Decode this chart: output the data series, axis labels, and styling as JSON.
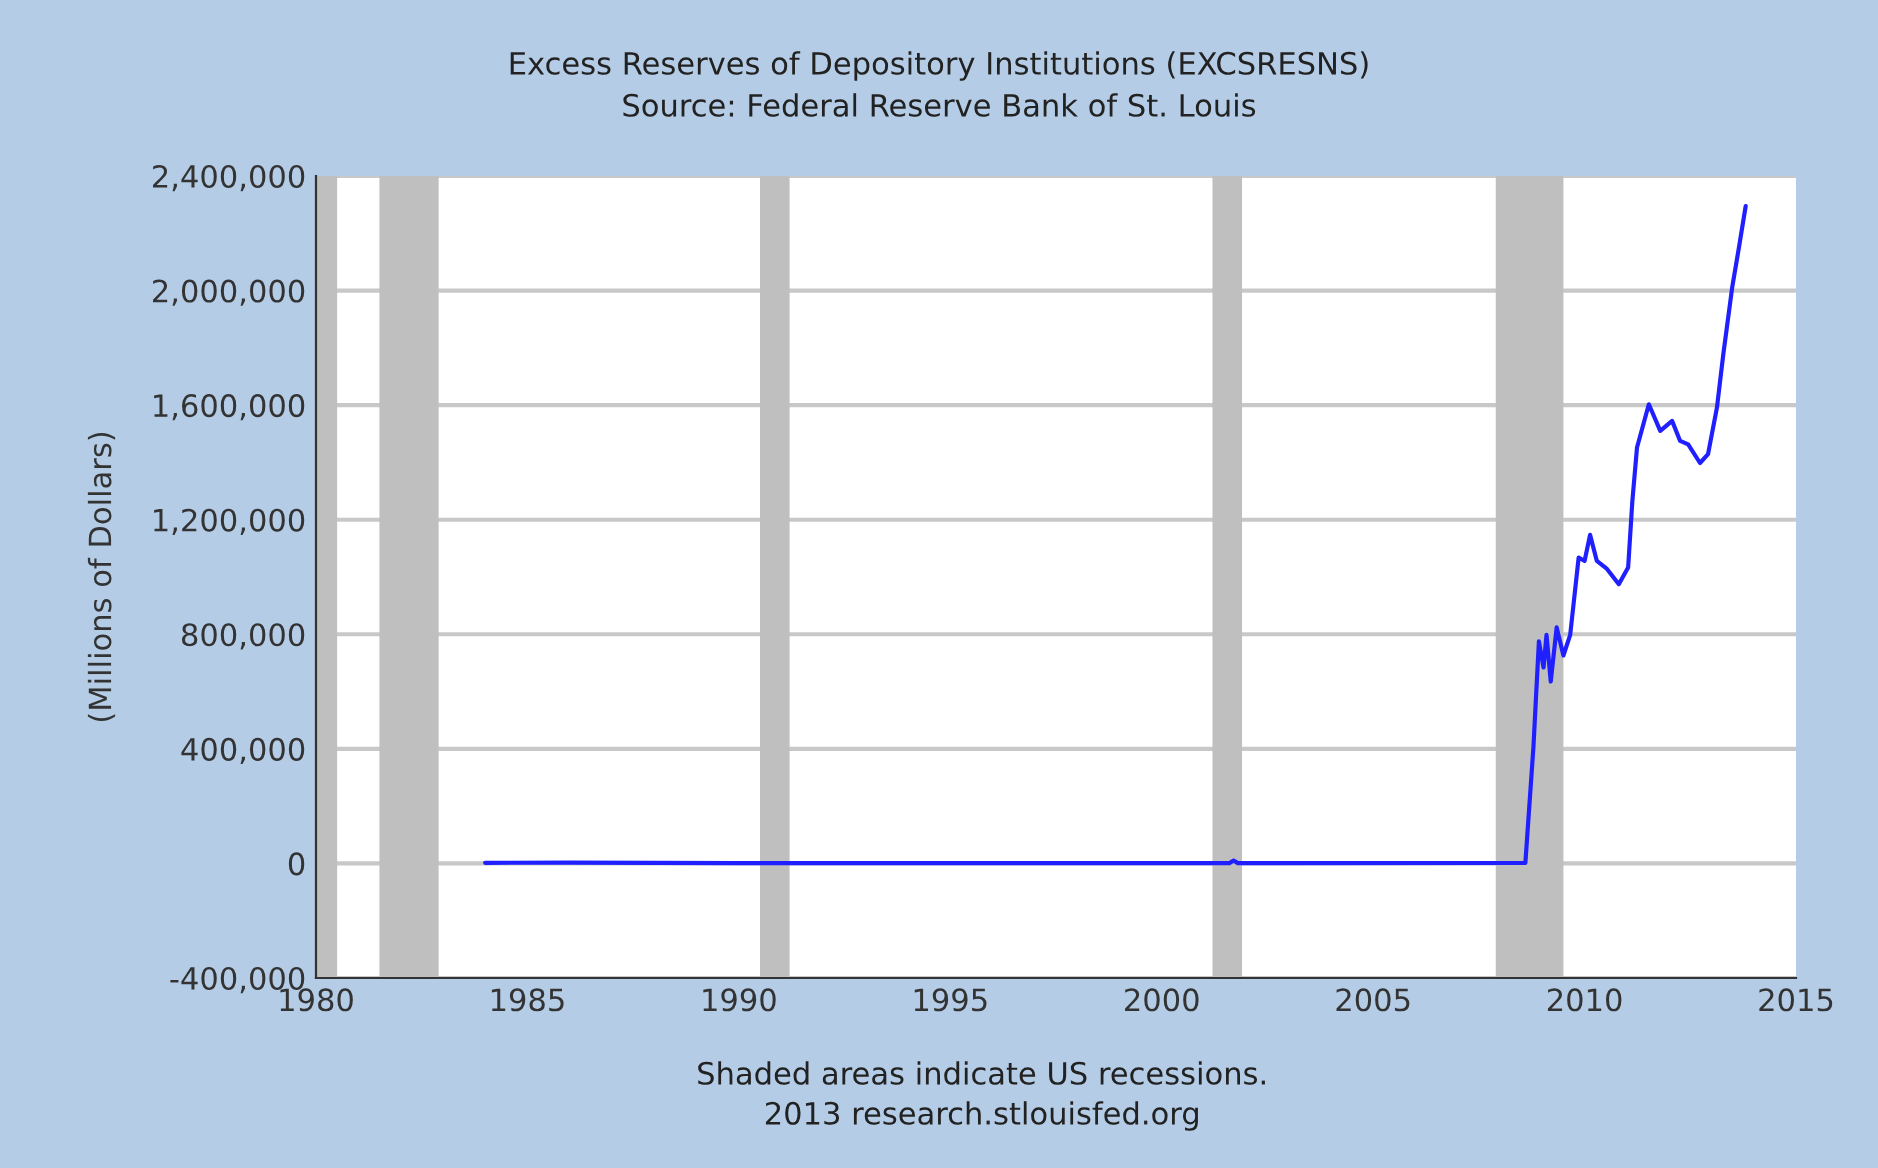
{
  "chart_data": {
    "type": "line",
    "title": "Excess Reserves of Depository Institutions (EXCSRESNS)",
    "subtitle": "Source: Federal Reserve Bank of St. Louis",
    "ylabel": "(Millions of Dollars)",
    "annotations": [
      "Shaded areas indicate US recessions.",
      "2013 research.stlouisfed.org"
    ],
    "series": [
      {
        "color": "#1f1fff",
        "x": [
          1984.0,
          1986.0,
          1990.0,
          2001.6,
          2001.7,
          2001.8,
          2008.6,
          2008.79,
          2008.92,
          2009.03,
          2009.1,
          2009.2,
          2009.34,
          2009.5,
          2009.66,
          2009.86,
          2010.0,
          2010.13,
          2010.29,
          2010.53,
          2010.81,
          2011.03,
          2011.13,
          2011.24,
          2011.52,
          2011.79,
          2012.07,
          2012.26,
          2012.45,
          2012.73,
          2012.92,
          2013.13,
          2013.28,
          2013.49,
          2013.65,
          2013.81
        ],
        "values": [
          2000,
          3000,
          1000,
          1000,
          10000,
          1000,
          2000,
          405000,
          775000,
          684000,
          798000,
          635000,
          824000,
          726000,
          798000,
          1068000,
          1056000,
          1147000,
          1056000,
          1028000,
          975000,
          1033000,
          1265000,
          1452000,
          1603000,
          1510000,
          1545000,
          1475000,
          1463000,
          1398000,
          1429000,
          1591000,
          1777000,
          2010000,
          2150000,
          2295000
        ]
      }
    ],
    "xlim": [
      1980,
      2015
    ],
    "xticks": [
      1980,
      1985,
      1990,
      1995,
      2000,
      2005,
      2010,
      2015
    ],
    "ylim": [
      -400000,
      2400000
    ],
    "yticks": [
      {
        "value": -400000,
        "label": "-400,000"
      },
      {
        "value": 0,
        "label": "0"
      },
      {
        "value": 400000,
        "label": "400,000"
      },
      {
        "value": 800000,
        "label": "800,000"
      },
      {
        "value": 1200000,
        "label": "1,200,000"
      },
      {
        "value": 1600000,
        "label": "1,600,000"
      },
      {
        "value": 2000000,
        "label": "2,000,000"
      },
      {
        "value": 2400000,
        "label": "2,400,000"
      }
    ],
    "bands": [
      {
        "axis": "x",
        "from": 1980.0,
        "to": 1980.5,
        "color": "#bfbfbf"
      },
      {
        "axis": "x",
        "from": 1981.5,
        "to": 1982.9,
        "color": "#bfbfbf"
      },
      {
        "axis": "x",
        "from": 1990.5,
        "to": 1991.2,
        "color": "#bfbfbf"
      },
      {
        "axis": "x",
        "from": 2001.2,
        "to": 2001.9,
        "color": "#bfbfbf"
      },
      {
        "axis": "x",
        "from": 2007.9,
        "to": 2009.5,
        "color": "#bfbfbf"
      }
    ],
    "grid": "y",
    "legend": false,
    "marker": "none",
    "line_style": "solid"
  }
}
